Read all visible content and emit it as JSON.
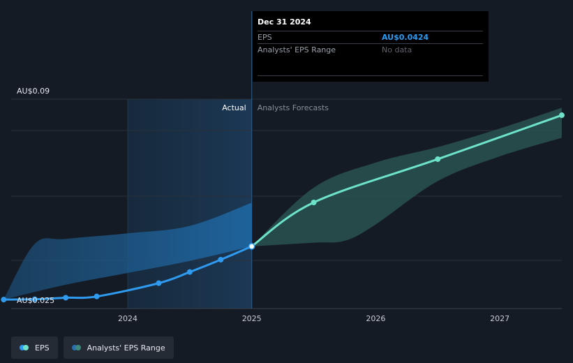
{
  "chart_data": {
    "type": "line",
    "title": "",
    "xlabel": "",
    "ylabel": "",
    "ylim": [
      0.025,
      0.09
    ],
    "y_tick_labels": [
      "AU$0.09",
      "AU$0.025"
    ],
    "x_ticks": [
      2024,
      2025,
      2026,
      2027
    ],
    "divider_x": 2025.0,
    "divider_labels": {
      "left": "Actual",
      "right": "Analysts Forecasts"
    },
    "series": [
      {
        "name": "EPS",
        "color": "#2f9bf0",
        "points": [
          {
            "x": 2023.0,
            "y": 0.0252
          },
          {
            "x": 2023.25,
            "y": 0.0253
          },
          {
            "x": 2023.5,
            "y": 0.0258
          },
          {
            "x": 2023.75,
            "y": 0.0262
          },
          {
            "x": 2024.25,
            "y": 0.0305
          },
          {
            "x": 2024.5,
            "y": 0.0341
          },
          {
            "x": 2024.75,
            "y": 0.0381
          },
          {
            "x": 2025.0,
            "y": 0.0424
          }
        ]
      },
      {
        "name": "Analysts' EPS Range",
        "color": "#6de3c9",
        "points": [
          {
            "x": 2025.0,
            "y": 0.0424
          },
          {
            "x": 2025.5,
            "y": 0.0566
          },
          {
            "x": 2026.5,
            "y": 0.0706
          },
          {
            "x": 2027.5,
            "y": 0.0848
          }
        ],
        "range_upper": [
          {
            "x": 2025.0,
            "y": 0.0424
          },
          {
            "x": 2025.5,
            "y": 0.0614
          },
          {
            "x": 2026.0,
            "y": 0.0695
          },
          {
            "x": 2026.5,
            "y": 0.0745
          },
          {
            "x": 2027.0,
            "y": 0.0805
          },
          {
            "x": 2027.5,
            "y": 0.0872
          }
        ],
        "range_lower": [
          {
            "x": 2025.0,
            "y": 0.0424
          },
          {
            "x": 2025.5,
            "y": 0.0436
          },
          {
            "x": 2025.75,
            "y": 0.0442
          },
          {
            "x": 2026.0,
            "y": 0.0495
          },
          {
            "x": 2026.5,
            "y": 0.0635
          },
          {
            "x": 2027.0,
            "y": 0.0715
          },
          {
            "x": 2027.5,
            "y": 0.0775
          }
        ]
      }
    ],
    "past_range_upper": [
      {
        "x": 2023.0,
        "y": 0.0252
      },
      {
        "x": 2023.25,
        "y": 0.0432
      },
      {
        "x": 2023.5,
        "y": 0.0448
      },
      {
        "x": 2024.0,
        "y": 0.0466
      },
      {
        "x": 2024.5,
        "y": 0.049
      },
      {
        "x": 2025.0,
        "y": 0.0565
      }
    ],
    "past_range_lower": [
      {
        "x": 2023.0,
        "y": 0.0252
      },
      {
        "x": 2023.5,
        "y": 0.03
      },
      {
        "x": 2024.0,
        "y": 0.0338
      },
      {
        "x": 2024.5,
        "y": 0.0377
      },
      {
        "x": 2025.0,
        "y": 0.0424
      }
    ],
    "grid": true,
    "legend_placement": "bottom-left"
  },
  "tooltip": {
    "date": "Dec 31 2024",
    "rows": [
      {
        "label": "EPS",
        "value": "AU$0.0424"
      },
      {
        "label": "Analysts' EPS Range",
        "value": "No data"
      }
    ]
  },
  "legend": [
    {
      "label": "EPS",
      "colors": [
        "#2f9bf0",
        "#6de3c9"
      ]
    },
    {
      "label": "Analysts' EPS Range",
      "colors": [
        "#2a6fb0",
        "#3f8a7a"
      ]
    }
  ],
  "colors": {
    "background": "#151b24",
    "grid": "#2a313b",
    "highlight": "#1b3650"
  }
}
